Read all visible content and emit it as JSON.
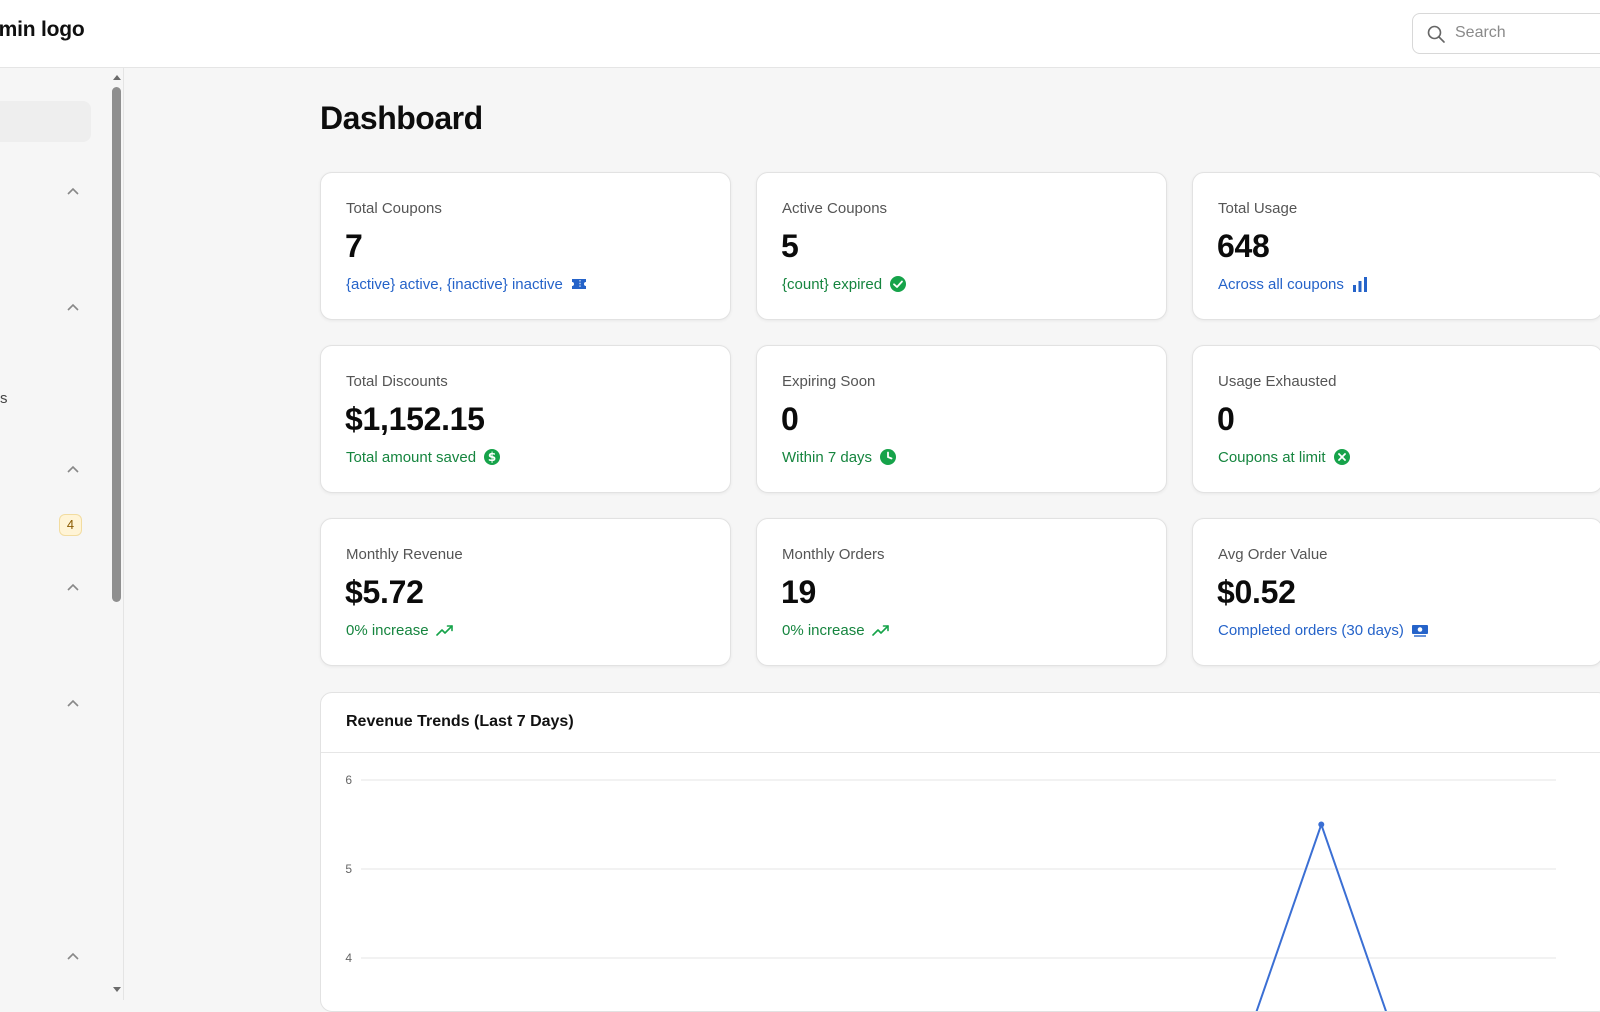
{
  "header": {
    "brand": "dmin logo",
    "search_placeholder": "Search"
  },
  "sidebar": {
    "partial_label": "s",
    "badge_count": "4"
  },
  "main": {
    "title": "Dashboard",
    "cards": [
      {
        "label": "Total Coupons",
        "value": "7",
        "sub": "{active} active, {inactive} inactive",
        "tone": "blue",
        "icon": "ticket-icon"
      },
      {
        "label": "Active Coupons",
        "value": "5",
        "sub": "{count} expired",
        "tone": "green",
        "icon": "check-circle-icon"
      },
      {
        "label": "Total Usage",
        "value": "648",
        "sub": "Across all coupons",
        "tone": "blue",
        "icon": "bar-chart-icon"
      },
      {
        "label": "Total Discounts",
        "value": "$1,152.15",
        "sub": "Total amount saved",
        "tone": "green",
        "icon": "dollar-circle-icon"
      },
      {
        "label": "Expiring Soon",
        "value": "0",
        "sub": "Within 7 days",
        "tone": "green",
        "icon": "clock-icon"
      },
      {
        "label": "Usage Exhausted",
        "value": "0",
        "sub": "Coupons at limit",
        "tone": "green",
        "icon": "x-circle-icon"
      },
      {
        "label": "Monthly Revenue",
        "value": "$5.72",
        "sub": "0% increase",
        "tone": "green",
        "icon": "trend-up-icon"
      },
      {
        "label": "Monthly Orders",
        "value": "19",
        "sub": "0% increase",
        "tone": "green",
        "icon": "trend-up-icon"
      },
      {
        "label": "Avg Order Value",
        "value": "$0.52",
        "sub": "Completed orders (30 days)",
        "tone": "blue",
        "icon": "cash-icon"
      }
    ]
  },
  "colors": {
    "blue": "#2563c9",
    "green": "#16853f",
    "line": "#3b6fd4"
  },
  "chart_data": {
    "type": "line",
    "title": "Revenue Trends (Last 7 Days)",
    "x_count": 7,
    "series": [
      {
        "values": [
          null,
          null,
          null,
          null,
          null,
          5.5,
          null
        ]
      }
    ],
    "y_ticks": [
      4,
      5,
      6
    ],
    "ylim": [
      4,
      6
    ],
    "grid": true
  }
}
